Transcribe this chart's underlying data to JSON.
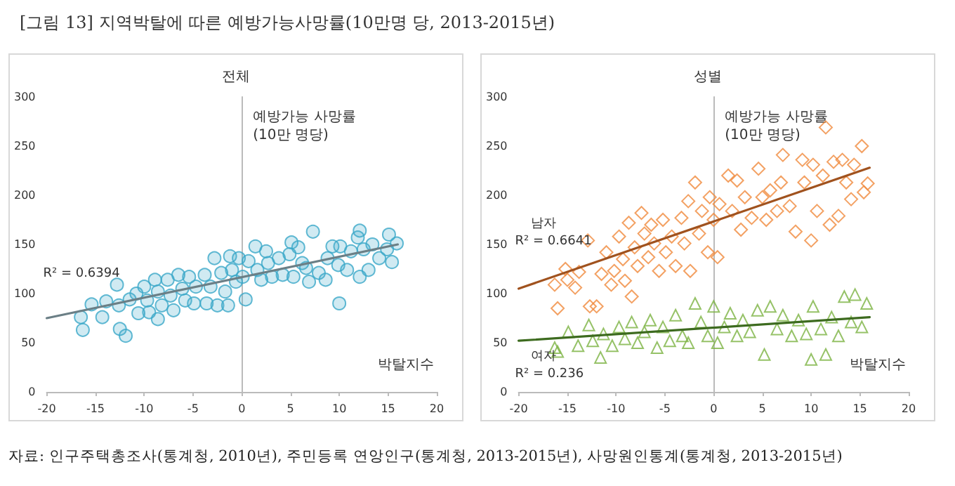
{
  "chart_data": [
    {
      "type": "scatter",
      "title": "전체",
      "xlabel": "박탈지수",
      "ylabel": "예방가능 사망률\n(10만 명당)",
      "xlim": [
        -20,
        20
      ],
      "xticks": [
        -20,
        -15,
        -10,
        -5,
        0,
        5,
        10,
        15,
        20
      ],
      "ylim": [
        0,
        300
      ],
      "yticks": [
        0,
        50,
        100,
        150,
        200,
        250,
        300
      ],
      "annotations": [
        "[그림 13]   지역박탈에 따른 예방가능사망률(10만명 당, 2013-2015년)",
        "자료: 인구주택총조사(통계청, 2010년), 주민등록 연앙인구(통계청, 2013-2015년), 사망원인통계(통계청, 2013-2015년)",
        "R² = 0.6394"
      ],
      "series": [
        {
          "marker": "circle",
          "color": "#3aa8c8",
          "x": [
            -16.5,
            -16.3,
            -15.4,
            -14.3,
            -13.9,
            -12.8,
            -12.6,
            -12.5,
            -11.9,
            -11.5,
            -10.8,
            -10.6,
            -10,
            -9.7,
            -9.5,
            -8.9,
            -8.6,
            -8.6,
            -8.2,
            -7.6,
            -7.3,
            -7,
            -6.5,
            -6.1,
            -5.8,
            -5.4,
            -4.9,
            -4.7,
            -3.8,
            -3.6,
            -3.2,
            -2.8,
            -2.5,
            -2.1,
            -1.7,
            -1.4,
            -1.2,
            -1,
            -0.6,
            -0.3,
            0.1,
            0.4,
            0.7,
            1.4,
            1.6,
            2,
            2.5,
            2.7,
            3.1,
            3.8,
            4.2,
            4.9,
            5.1,
            5.3,
            5.8,
            6.2,
            6.6,
            6.9,
            7.3,
            7.9,
            8.6,
            8.8,
            9.3,
            9.9,
            10,
            10.1,
            10.8,
            11.2,
            11.9,
            12.1,
            12.1,
            12.5,
            13,
            13.4,
            14.1,
            14.9,
            15.1,
            15.4,
            15.9
          ],
          "values": [
            76,
            63,
            89,
            76,
            92,
            109,
            88,
            64,
            57,
            94,
            100,
            80,
            107,
            93,
            81,
            114,
            102,
            74,
            88,
            114,
            98,
            83,
            119,
            105,
            93,
            117,
            90,
            107,
            119,
            90,
            107,
            136,
            88,
            121,
            102,
            88,
            138,
            124,
            112,
            136,
            117,
            94,
            133,
            148,
            124,
            114,
            143,
            131,
            117,
            136,
            119,
            140,
            152,
            117,
            147,
            131,
            126,
            112,
            163,
            121,
            114,
            136,
            148,
            129,
            90,
            148,
            124,
            143,
            157,
            164,
            117,
            145,
            124,
            150,
            136,
            145,
            160,
            132,
            151
          ]
        },
        {
          "type": "line",
          "color": "#6b7f86",
          "x": [
            -20,
            16
          ],
          "values": [
            75,
            150
          ]
        }
      ]
    },
    {
      "type": "scatter",
      "title": "성별",
      "xlabel": "박탈지수",
      "ylabel": "예방가능 사망률\n(10만 명당)",
      "xlim": [
        -20,
        20
      ],
      "xticks": [
        -20,
        -15,
        -10,
        -5,
        0,
        5,
        10,
        15,
        20
      ],
      "ylim": [
        0,
        300
      ],
      "yticks": [
        0,
        50,
        100,
        150,
        200,
        250,
        300
      ],
      "annotations": [
        "남자",
        "R² = 0.6641",
        "여자",
        "R² = 0.236"
      ],
      "series": [
        {
          "marker": "diamond",
          "color": "#f08a3c",
          "x": [
            -16.3,
            -16,
            -15.2,
            -15,
            -14.2,
            -13.8,
            -12.9,
            -12.7,
            -12,
            -11.5,
            -11,
            -10.5,
            -10.2,
            -9.7,
            -9.3,
            -9.1,
            -8.7,
            -8.4,
            -8.1,
            -7.8,
            -7.4,
            -7.1,
            -6.7,
            -6.4,
            -6.1,
            -5.6,
            -5.2,
            -4.9,
            -4.3,
            -3.9,
            -3.3,
            -3,
            -2.6,
            -2.4,
            -1.9,
            -1.5,
            -1.2,
            -0.6,
            -0.4,
            0,
            0.4,
            0.6,
            1.5,
            1.9,
            2.4,
            2.8,
            3.2,
            3.9,
            4.6,
            5,
            5.4,
            5.8,
            6.5,
            6.9,
            7.1,
            7.8,
            8.4,
            9.1,
            9.3,
            10,
            10.2,
            10.6,
            11.2,
            11.5,
            11.9,
            12.3,
            12.8,
            13.2,
            13.6,
            14.1,
            14.4,
            15.2,
            15.4,
            15.8
          ],
          "values": [
            109,
            85,
            125,
            114,
            106,
            122,
            154,
            87,
            87,
            120,
            142,
            109,
            123,
            158,
            135,
            113,
            172,
            97,
            147,
            128,
            182,
            161,
            137,
            170,
            151,
            123,
            175,
            142,
            158,
            128,
            177,
            151,
            194,
            123,
            213,
            161,
            184,
            142,
            198,
            175,
            137,
            191,
            220,
            184,
            215,
            165,
            198,
            177,
            227,
            198,
            175,
            205,
            184,
            213,
            241,
            189,
            163,
            236,
            213,
            154,
            231,
            184,
            220,
            269,
            170,
            234,
            179,
            236,
            213,
            196,
            231,
            250,
            203,
            212
          ]
        },
        {
          "marker": "triangle",
          "color": "#7cb342",
          "x": [
            -16.3,
            -16,
            -14.9,
            -13.9,
            -12.8,
            -12.4,
            -11.6,
            -11.3,
            -10.4,
            -9.7,
            -9.1,
            -8.4,
            -7.8,
            -7.1,
            -6.5,
            -5.8,
            -5.2,
            -4.5,
            -3.9,
            -3.2,
            -2.6,
            -1.9,
            -1.3,
            -0.6,
            0,
            0.4,
            1.1,
            1.7,
            2.4,
            3,
            3.7,
            4.5,
            5.2,
            5.8,
            6.5,
            7.1,
            8,
            8.7,
            9.5,
            10,
            10.2,
            11,
            11.5,
            12.1,
            12.8,
            13.4,
            14.1,
            14.5,
            15.2,
            15.7
          ],
          "values": [
            45,
            41,
            61,
            47,
            68,
            52,
            35,
            59,
            47,
            66,
            54,
            71,
            50,
            61,
            73,
            45,
            66,
            52,
            78,
            57,
            50,
            90,
            71,
            57,
            87,
            50,
            66,
            80,
            57,
            73,
            61,
            83,
            38,
            87,
            64,
            78,
            57,
            73,
            59,
            33,
            87,
            64,
            38,
            76,
            57,
            97,
            71,
            99,
            66,
            90
          ]
        },
        {
          "type": "line",
          "color": "#a0521e",
          "x": [
            -20,
            16
          ],
          "values": [
            105,
            228
          ]
        },
        {
          "type": "line",
          "color": "#3d6b1f",
          "x": [
            -20,
            16
          ],
          "values": [
            52,
            76
          ]
        }
      ]
    }
  ]
}
